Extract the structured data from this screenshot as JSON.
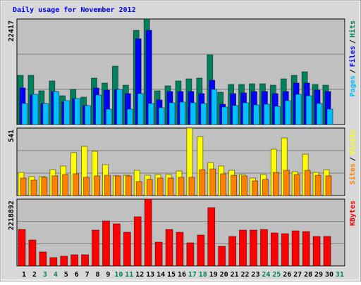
{
  "title": "Daily usage for November 2012",
  "legend_separator": "/",
  "chart_data": [
    {
      "type": "bar",
      "ylim": [
        0,
        22417
      ],
      "yticks": [
        22417
      ],
      "series": [
        {
          "name": "Hits",
          "color": "#00805c",
          "values": [
            10462,
            10462,
            7173,
            9266,
            6127,
            7472,
            5828,
            9863,
            8817,
            12404,
            8369,
            20026,
            22417,
            7173,
            8220,
            9266,
            9714,
            9863,
            14795,
            6875,
            8518,
            8518,
            8668,
            8668,
            8369,
            9714,
            10462,
            11209,
            8518,
            8369,
            0
          ]
        },
        {
          "name": "Files",
          "color": "#0000ff",
          "values": [
            7771,
            6277,
            4483,
            7024,
            4782,
            5530,
            4035,
            7771,
            7323,
            7472,
            6576,
            18233,
            20026,
            5231,
            7024,
            7024,
            7024,
            6576,
            9415,
            4334,
            6576,
            6725,
            7024,
            7024,
            6576,
            7024,
            8818,
            8818,
            7323,
            7024,
            0
          ]
        },
        {
          "name": "Pages",
          "color": "#00c0ff",
          "values": [
            4483,
            6426,
            4483,
            7024,
            5081,
            5530,
            4035,
            6277,
            3288,
            7472,
            3288,
            6576,
            4483,
            3587,
            4633,
            4782,
            4633,
            4483,
            7472,
            3736,
            4035,
            4633,
            4185,
            4334,
            3886,
            5081,
            6426,
            6127,
            4483,
            3288,
            0
          ]
        }
      ]
    },
    {
      "type": "bar",
      "ylim": [
        0,
        541
      ],
      "yticks": [
        541
      ],
      "series": [
        {
          "name": "Visits",
          "color": "#ffff00",
          "values": [
            186,
            152,
            152,
            208,
            237,
            344,
            394,
            355,
            248,
            158,
            163,
            203,
            163,
            169,
            169,
            197,
            541,
            473,
            265,
            237,
            203,
            169,
            141,
            169,
            372,
            462,
            192,
            332,
            186,
            208,
            0
          ]
        },
        {
          "name": "Sites",
          "color": "#ff8000",
          "values": [
            141,
            124,
            147,
            158,
            169,
            175,
            147,
            158,
            163,
            158,
            158,
            113,
            130,
            141,
            141,
            147,
            147,
            208,
            214,
            175,
            163,
            158,
            118,
            130,
            186,
            203,
            169,
            203,
            163,
            158,
            0
          ]
        }
      ]
    },
    {
      "type": "bar",
      "ylim": [
        0,
        2218892
      ],
      "yticks": [
        2218892
      ],
      "categories": [
        "1",
        "2",
        "3",
        "4",
        "5",
        "6",
        "7",
        "8",
        "9",
        "10",
        "11",
        "12",
        "13",
        "14",
        "15",
        "16",
        "17",
        "18",
        "19",
        "20",
        "21",
        "22",
        "23",
        "24",
        "25",
        "26",
        "27",
        "28",
        "29",
        "30",
        "31"
      ],
      "category_colors": [
        "#000000",
        "#000000",
        "#00805c",
        "#00805c",
        "#000000",
        "#000000",
        "#000000",
        "#000000",
        "#000000",
        "#00805c",
        "#00805c",
        "#000000",
        "#000000",
        "#000000",
        "#000000",
        "#000000",
        "#00805c",
        "#00805c",
        "#000000",
        "#000000",
        "#000000",
        "#000000",
        "#000000",
        "#00805c",
        "#00805c",
        "#000000",
        "#000000",
        "#000000",
        "#000000",
        "#000000",
        "#00805c"
      ],
      "series": [
        {
          "name": "KBytes",
          "color": "#ff0000",
          "values": [
            1214564,
            864209,
            467140,
            280284,
            327000,
            373712,
            373712,
            1191207,
            1494848,
            1401420,
            1121136,
            1635000,
            2218892,
            794138,
            1214564,
            1121136,
            770781,
            1027708,
            1938631,
            653996,
            980994,
            1191207,
            1191207,
            1214564,
            1097779,
            1074422,
            1167850,
            1144493,
            980994,
            980994,
            0
          ]
        }
      ]
    }
  ]
}
